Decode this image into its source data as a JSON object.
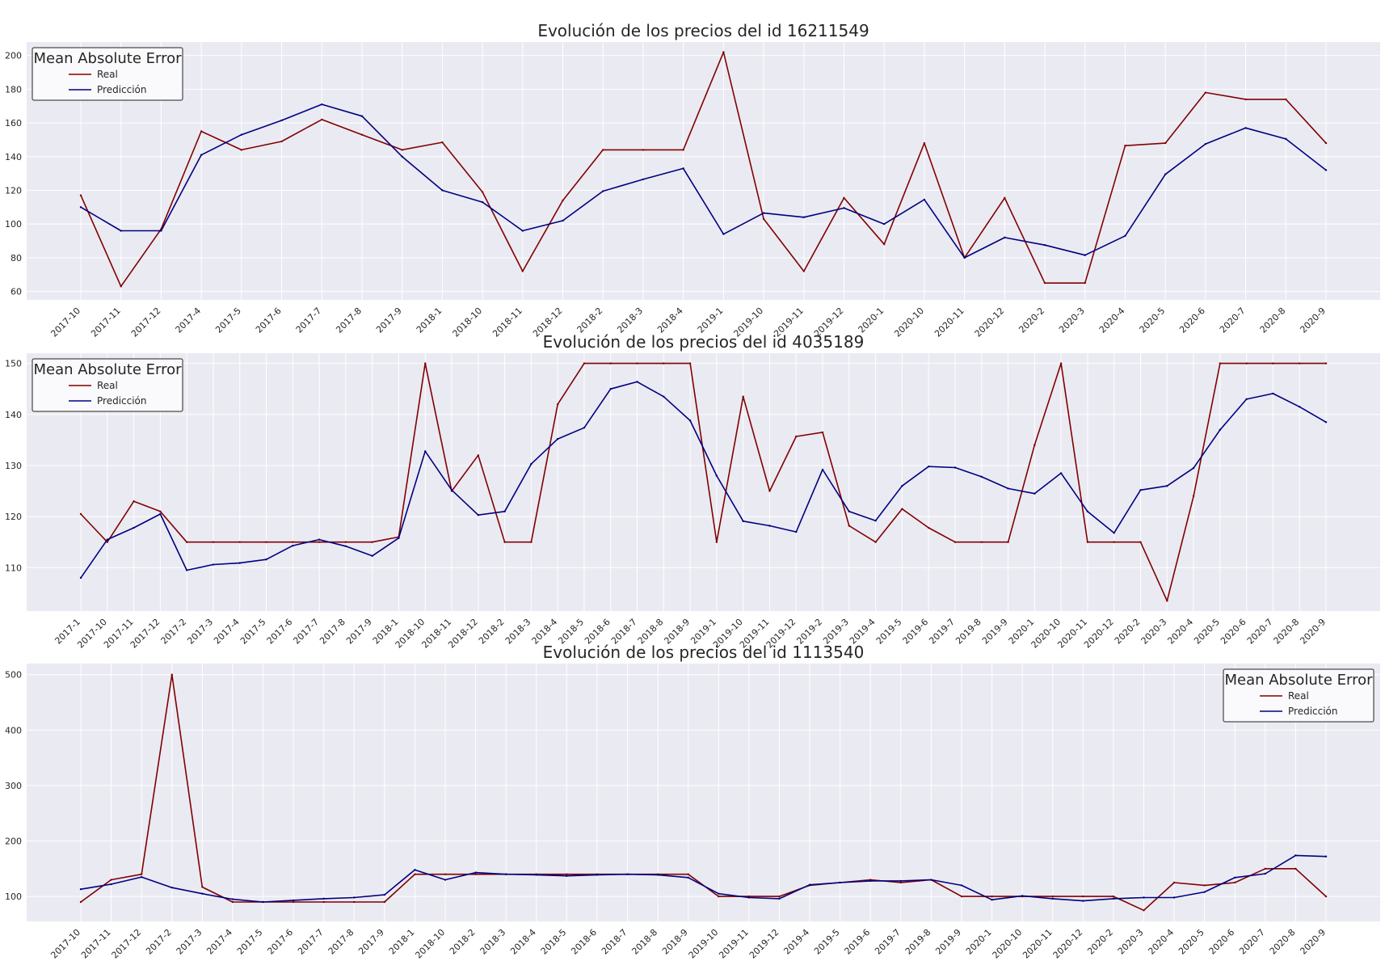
{
  "chart_data": [
    {
      "type": "line",
      "title": "Evolución de los precios del id 16211549",
      "xlabel": "",
      "ylabel": "",
      "categories": [
        "2017-10",
        "2017-11",
        "2017-12",
        "2017-4",
        "2017-5",
        "2017-6",
        "2017-7",
        "2017-8",
        "2017-9",
        "2018-1",
        "2018-10",
        "2018-11",
        "2018-12",
        "2018-2",
        "2018-3",
        "2018-4",
        "2019-1",
        "2019-10",
        "2019-11",
        "2019-12",
        "2020-1",
        "2020-10",
        "2020-11",
        "2020-12",
        "2020-2",
        "2020-3",
        "2020-4",
        "2020-5",
        "2020-6",
        "2020-7",
        "2020-8",
        "2020-9"
      ],
      "yticks": [
        60,
        80,
        100,
        120,
        140,
        160,
        180,
        200
      ],
      "ylim": [
        55,
        208
      ],
      "grid": true,
      "legend": {
        "title": "Mean Absolute Error",
        "placement": "top-left"
      },
      "series": [
        {
          "name": "Real",
          "color": "#800000",
          "values": [
            117,
            63,
            97,
            155,
            144,
            149,
            162,
            153,
            144,
            148.5,
            119,
            72,
            114,
            144,
            144,
            144,
            202,
            103,
            72,
            115.5,
            88,
            148,
            80,
            115.5,
            65,
            65,
            146.5,
            148,
            178,
            174,
            174,
            148
          ]
        },
        {
          "name": "Predicción",
          "color": "#000080",
          "values": [
            110,
            96,
            96,
            141,
            153,
            161.5,
            171,
            164,
            140,
            120,
            113,
            96,
            102,
            119.5,
            126.5,
            133,
            94,
            106.5,
            104,
            109.5,
            100,
            114.5,
            80,
            92,
            87.5,
            81.5,
            93,
            129.5,
            147.5,
            157,
            150.5,
            132
          ]
        }
      ]
    },
    {
      "type": "line",
      "title": "Evolución de los precios del id 4035189",
      "xlabel": "",
      "ylabel": "",
      "categories": [
        "2017-1",
        "2017-10",
        "2017-11",
        "2017-12",
        "2017-2",
        "2017-3",
        "2017-4",
        "2017-5",
        "2017-6",
        "2017-7",
        "2017-8",
        "2017-9",
        "2018-1",
        "2018-10",
        "2018-11",
        "2018-12",
        "2018-2",
        "2018-3",
        "2018-4",
        "2018-5",
        "2018-6",
        "2018-7",
        "2018-8",
        "2018-9",
        "2019-1",
        "2019-10",
        "2019-11",
        "2019-12",
        "2019-2",
        "2019-3",
        "2019-4",
        "2019-5",
        "2019-6",
        "2019-7",
        "2019-8",
        "2019-9",
        "2020-1",
        "2020-10",
        "2020-11",
        "2020-12",
        "2020-2",
        "2020-3",
        "2020-4",
        "2020-5",
        "2020-6",
        "2020-7",
        "2020-8",
        "2020-9"
      ],
      "yticks": [
        110,
        120,
        130,
        140,
        150
      ],
      "ylim": [
        101.5,
        152
      ],
      "grid": true,
      "legend": {
        "title": "Mean Absolute Error",
        "placement": "top-left"
      },
      "series": [
        {
          "name": "Real",
          "color": "#800000",
          "values": [
            120.5,
            115,
            123,
            121,
            115,
            115,
            115,
            115,
            115,
            115,
            115,
            115,
            116,
            150,
            125,
            132,
            115,
            115,
            142,
            150,
            150,
            150,
            150,
            150,
            115,
            143.5,
            125,
            135.7,
            136.5,
            118.2,
            115,
            121.5,
            117.8,
            115,
            115,
            115,
            134,
            150,
            115,
            115,
            115,
            103.5,
            124,
            150,
            150,
            150,
            150,
            150
          ]
        },
        {
          "name": "Predicción",
          "color": "#000080",
          "values": [
            108,
            115.5,
            117.8,
            120.5,
            109.5,
            110.6,
            110.9,
            111.6,
            114.3,
            115.5,
            114.2,
            112.3,
            115.8,
            132.8,
            125.2,
            120.3,
            121,
            130.3,
            135.2,
            137.4,
            145,
            146.4,
            143.5,
            138.8,
            128,
            119.1,
            118.2,
            117,
            129.2,
            121,
            119.2,
            126,
            129.8,
            129.6,
            127.8,
            125.5,
            124.5,
            128.5,
            121,
            116.8,
            125.2,
            126,
            129.5,
            137,
            143,
            144.1,
            141.5,
            138.5
          ]
        }
      ]
    },
    {
      "type": "line",
      "title": "Evolución de los precios del id 1113540",
      "xlabel": "",
      "ylabel": "",
      "categories": [
        "2017-10",
        "2017-11",
        "2017-12",
        "2017-2",
        "2017-3",
        "2017-4",
        "2017-5",
        "2017-6",
        "2017-7",
        "2017-8",
        "2017-9",
        "2018-1",
        "2018-10",
        "2018-2",
        "2018-3",
        "2018-4",
        "2018-5",
        "2018-6",
        "2018-7",
        "2018-8",
        "2018-9",
        "2019-10",
        "2019-11",
        "2019-12",
        "2019-4",
        "2019-5",
        "2019-6",
        "2019-7",
        "2019-8",
        "2019-9",
        "2020-1",
        "2020-10",
        "2020-11",
        "2020-12",
        "2020-2",
        "2020-3",
        "2020-4",
        "2020-5",
        "2020-6",
        "2020-7",
        "2020-8",
        "2020-9"
      ],
      "yticks": [
        100,
        200,
        300,
        400,
        500
      ],
      "ylim": [
        55,
        520
      ],
      "grid": true,
      "legend": {
        "title": "Mean Absolute Error",
        "placement": "top-right"
      },
      "series": [
        {
          "name": "Real",
          "color": "#800000",
          "values": [
            90,
            130,
            140,
            500,
            117,
            90,
            90,
            90,
            90,
            90,
            90,
            140,
            140,
            140,
            140,
            140,
            140,
            140,
            140,
            140,
            140,
            100,
            100,
            100,
            120,
            125,
            130,
            125,
            130,
            100,
            100,
            100,
            100,
            100,
            100,
            75,
            125,
            120,
            125,
            150,
            150,
            100
          ]
        },
        {
          "name": "Predicción",
          "color": "#000080",
          "values": [
            113,
            122,
            135,
            116,
            105,
            95,
            90,
            93,
            96,
            98,
            103,
            148,
            130,
            143,
            140,
            139,
            137,
            139,
            140,
            139,
            134,
            105,
            98,
            96,
            121,
            125,
            128,
            128,
            130,
            120,
            94,
            101,
            96,
            92,
            96,
            98,
            98,
            108,
            134,
            141,
            174,
            172
          ]
        }
      ]
    }
  ]
}
